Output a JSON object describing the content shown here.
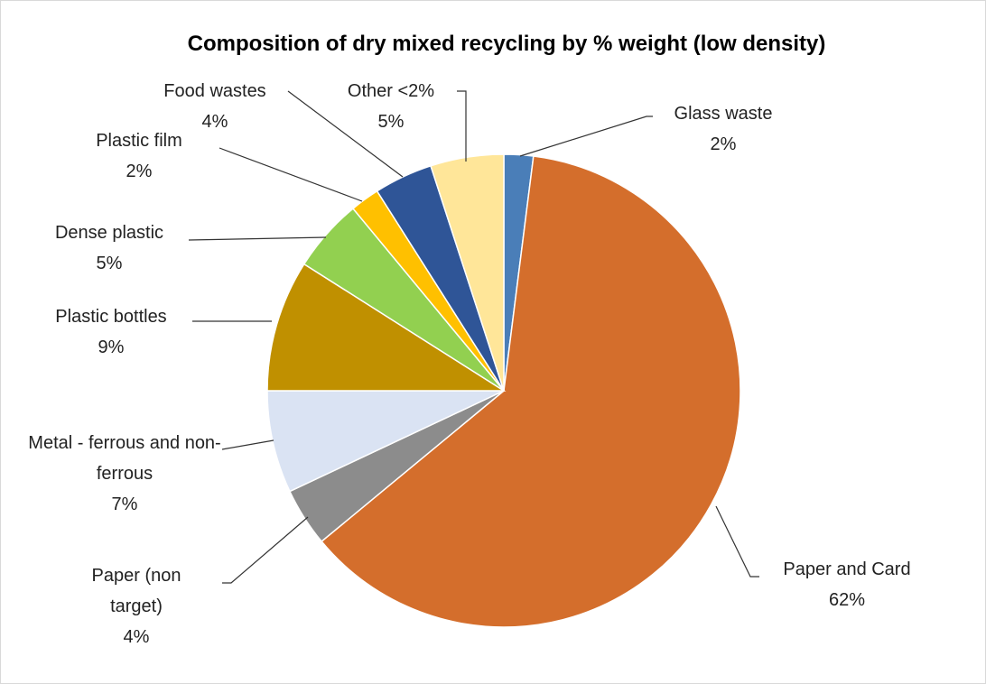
{
  "chart_data": {
    "type": "pie",
    "title": "Composition of dry mixed recycling by % weight (low density)",
    "categories": [
      "Glass waste",
      "Paper and Card",
      "Paper (non target)",
      "Metal - ferrous and non-ferrous",
      "Plastic bottles",
      "Dense plastic",
      "Plastic film",
      "Food wastes",
      "Other <2%"
    ],
    "values": [
      2,
      62,
      4,
      7,
      9,
      5,
      2,
      4,
      5
    ],
    "value_labels": [
      "2%",
      "62%",
      "4%",
      "7%",
      "9%",
      "5%",
      "2%",
      "4%",
      "5%"
    ],
    "colors": [
      "#4a7eb8",
      "#d46e2c",
      "#8c8c8c",
      "#dae3f3",
      "#c09000",
      "#92d050",
      "#ffc000",
      "#2f5597",
      "#ffe699"
    ]
  }
}
